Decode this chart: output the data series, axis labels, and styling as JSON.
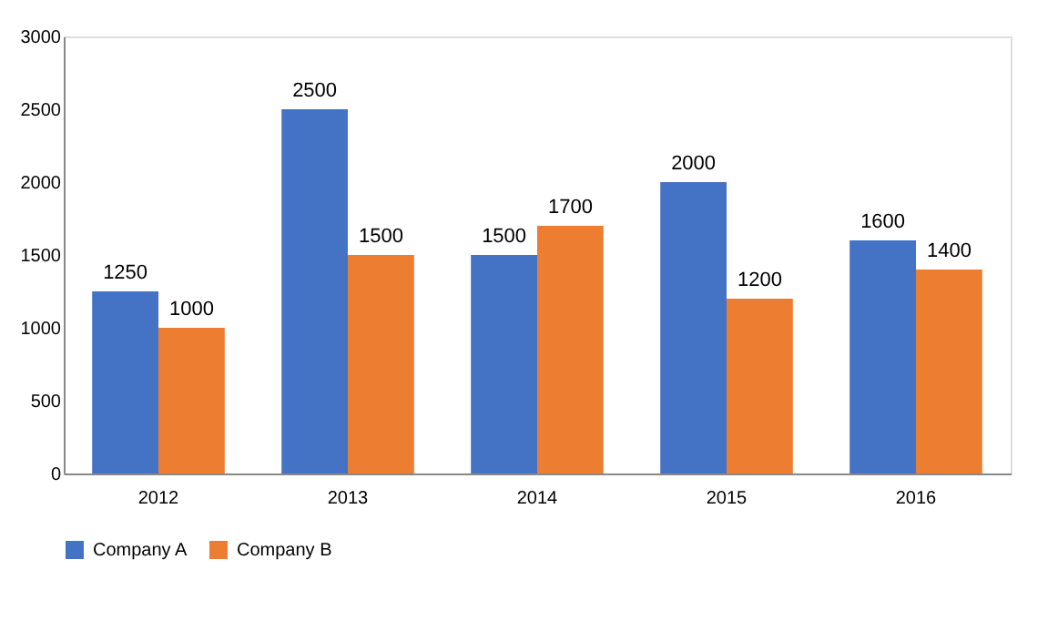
{
  "chart_data": {
    "type": "bar",
    "categories": [
      "2012",
      "2013",
      "2014",
      "2015",
      "2016"
    ],
    "series": [
      {
        "name": "Company A",
        "color": "#4472c4",
        "values": [
          1250,
          2500,
          1500,
          2000,
          1600
        ]
      },
      {
        "name": "Company B",
        "color": "#ed7d31",
        "values": [
          1000,
          1500,
          1700,
          1200,
          1400
        ]
      }
    ],
    "ylim": [
      0,
      3000
    ],
    "yticks": [
      0,
      500,
      1000,
      1500,
      2000,
      2500,
      3000
    ],
    "grid": false,
    "legend": "bottom",
    "data_labels": true
  }
}
